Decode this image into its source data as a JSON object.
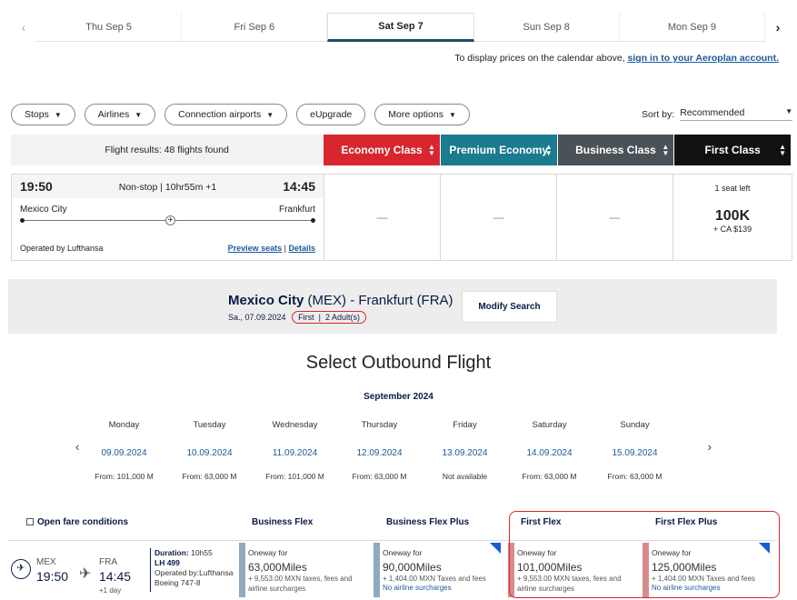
{
  "date_strip": {
    "prev_icon": "chevron-left-icon",
    "next_icon": "chevron-right-icon",
    "dates": [
      "Thu Sep 5",
      "Fri Sep 6",
      "Sat Sep 7",
      "Sun Sep 8",
      "Mon Sep 9"
    ],
    "active_index": 2
  },
  "signin": {
    "text": "To display prices on the calendar above,",
    "link": "sign in to your Aeroplan account."
  },
  "filters": [
    "Stops",
    "Airlines",
    "Connection airports",
    "eUpgrade",
    "More options"
  ],
  "sort": {
    "label": "Sort by:",
    "value": "Recommended"
  },
  "results": {
    "count_label": "Flight results: 48 flights found",
    "cabins": [
      "Economy Class",
      "Premium Economy",
      "Business Class",
      "First Class"
    ]
  },
  "flight": {
    "dep_time": "19:50",
    "arr_time": "14:45",
    "summary": "Non-stop | 10hr55m +1",
    "dep_city": "Mexico City",
    "arr_city": "Frankfurt",
    "operated_by": "Operated by Lufthansa",
    "preview_seats": "Preview seats",
    "details": "Details",
    "separator": "|",
    "economy": "—",
    "premium": "—",
    "business": "—",
    "first": {
      "seats_left": "1 seat left",
      "price": "100K",
      "sub": "+ CA $139"
    }
  },
  "lh": {
    "route_city_from": "Mexico City",
    "route_code_from": "(MEX)",
    "route_dash": "-",
    "route_city_to": "Frankfurt",
    "route_code_to": "(FRA)",
    "date": "Sa., 07.09.2024",
    "cabin": "First",
    "pax_sep": "|",
    "pax": "2 Adult(s)",
    "modify_button": "Modify Search",
    "select_title": "Select Outbound Flight",
    "month": "September 2024",
    "week": [
      {
        "name": "Monday",
        "date": "09.09.2024",
        "from": "From: 101,000 M"
      },
      {
        "name": "Tuesday",
        "date": "10.09.2024",
        "from": "From: 63,000 M"
      },
      {
        "name": "Wednesday",
        "date": "11.09.2024",
        "from": "From: 101,000 M"
      },
      {
        "name": "Thursday",
        "date": "12.09.2024",
        "from": "From: 63,000 M"
      },
      {
        "name": "Friday",
        "date": "13.09.2024",
        "from": "Not available"
      },
      {
        "name": "Saturday",
        "date": "14.09.2024",
        "from": "From: 63,000 M"
      },
      {
        "name": "Sunday",
        "date": "15.09.2024",
        "from": "From: 63,000 M"
      }
    ],
    "open_fare": "Open fare conditions",
    "fare_headers": [
      "Business Flex",
      "Business Flex Plus",
      "First Flex",
      "First Flex Plus"
    ],
    "row": {
      "dep_code": "MEX",
      "dep_time": "19:50",
      "arr_code": "FRA",
      "arr_time": "14:45",
      "plus_day": "+1 day",
      "duration_label": "Duration:",
      "duration": "10h55",
      "flight_no": "LH 499",
      "operated": "Operated by:Lufthansa",
      "aircraft": "Boeing 747-8"
    },
    "fares": [
      {
        "oneway": "Oneway for",
        "miles": "63,000Miles",
        "tax1": "+ 9,553.00 MXN taxes, fees and",
        "tax2": "airline surcharges",
        "bar": "#8fa9bd"
      },
      {
        "oneway": "Oneway for",
        "miles": "90,000Miles",
        "tax1": "+ 1,404.00 MXN Taxes and fees",
        "tax2": "No airline surcharges",
        "bar": "#8fa9bd"
      },
      {
        "oneway": "Oneway for",
        "miles": "101,000Miles",
        "tax1": "+ 9,553.00 MXN taxes, fees and",
        "tax2": "airline surcharges",
        "bar": "#d98b8b"
      },
      {
        "oneway": "Oneway for",
        "miles": "125,000Miles",
        "tax1": "+ 1,404.00 MXN Taxes and fees",
        "tax2": "No airline surcharges",
        "bar": "#d98b8b"
      }
    ]
  }
}
